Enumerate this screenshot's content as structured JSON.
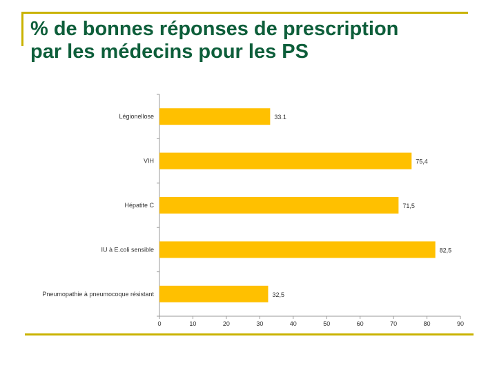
{
  "slide": {
    "title_line1": "% de bonnes réponses de prescription",
    "title_line2": "par les médecins pour les PS"
  },
  "colors": {
    "title": "#0d5e3a",
    "accent": "#c9b200",
    "bar": "#ffc000",
    "axis": "#999999",
    "label": "#333333"
  },
  "chart_data": {
    "type": "bar",
    "orientation": "horizontal",
    "categories": [
      "Légionellose",
      "VIH",
      "Hépatite C",
      "IU à E.coli sensible",
      "Pneumopathie à pneumocoque résistant"
    ],
    "values": [
      33.1,
      75.4,
      71.5,
      82.5,
      32.5
    ],
    "value_labels": [
      "33.1",
      "75,4",
      "71,5",
      "82,5",
      "32,5"
    ],
    "xlim": [
      0,
      90
    ],
    "xticks": [
      0,
      10,
      20,
      30,
      40,
      50,
      60,
      70,
      80,
      90
    ],
    "title": "",
    "xlabel": "",
    "ylabel": "",
    "grid": false,
    "legend": "none"
  }
}
